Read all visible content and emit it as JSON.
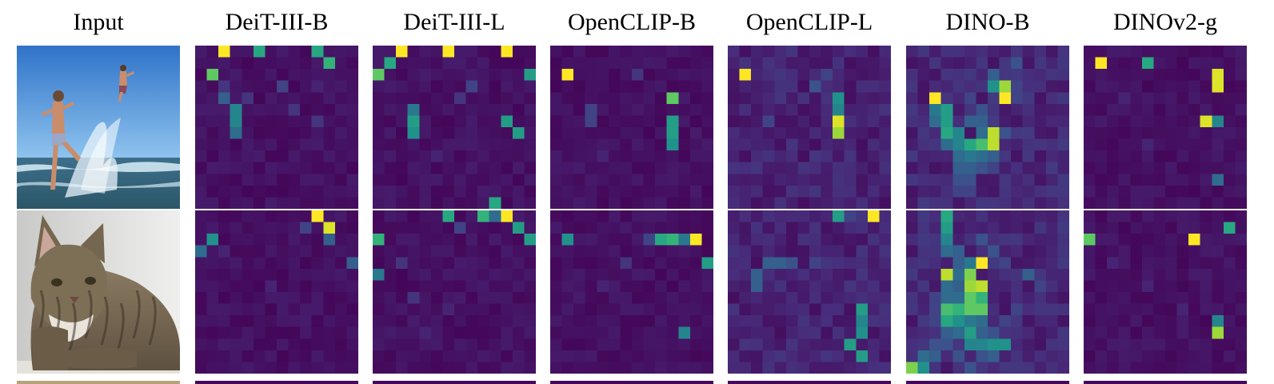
{
  "figure": {
    "column_headers": [
      "Input",
      "DeiT-III-B",
      "DeiT-III-L",
      "OpenCLIP-B",
      "OpenCLIP-L",
      "DINO-B",
      "DINOv2-g"
    ],
    "colormap": "viridis",
    "colormap_stops": [
      "#440154",
      "#472d7b",
      "#3b528b",
      "#2c728e",
      "#21918c",
      "#28ae80",
      "#5ec962",
      "#addc30",
      "#fde725"
    ],
    "grid_size": 14,
    "rows": [
      {
        "input_image": "boy splashing in sea water, another boy jumping, blue sky",
        "maps": {
          "DeiT-III-B": [
            [
              0,
              2,
              1.0
            ],
            [
              0,
              5,
              0.6
            ],
            [
              0,
              10,
              0.6
            ],
            [
              1,
              11,
              0.65
            ],
            [
              2,
              1,
              0.75
            ],
            [
              3,
              2,
              0.15
            ],
            [
              3,
              7,
              0.2
            ],
            [
              4,
              2,
              0.3
            ],
            [
              5,
              3,
              0.45
            ],
            [
              6,
              3,
              0.45
            ],
            [
              7,
              3,
              0.35
            ],
            [
              4,
              4,
              0.15
            ],
            [
              5,
              8,
              0.15
            ],
            [
              6,
              10,
              0.15
            ],
            [
              3,
              10,
              0.1
            ]
          ],
          "DeiT-III-L": [
            [
              0,
              2,
              1.0
            ],
            [
              0,
              6,
              1.0
            ],
            [
              0,
              11,
              1.0
            ],
            [
              1,
              1,
              0.6
            ],
            [
              2,
              0,
              0.75
            ],
            [
              2,
              13,
              0.55
            ],
            [
              3,
              8,
              0.2
            ],
            [
              5,
              3,
              0.4
            ],
            [
              6,
              3,
              0.55
            ],
            [
              7,
              3,
              0.5
            ],
            [
              6,
              11,
              0.55
            ],
            [
              7,
              12,
              0.55
            ],
            [
              13,
              10,
              0.6
            ],
            [
              4,
              7,
              0.15
            ],
            [
              9,
              5,
              0.1
            ]
          ],
          "OpenCLIP-B": [
            [
              2,
              1,
              1.0
            ],
            [
              4,
              10,
              0.75
            ],
            [
              6,
              10,
              0.55
            ],
            [
              7,
              10,
              0.55
            ],
            [
              8,
              10,
              0.5
            ],
            [
              5,
              3,
              0.2
            ],
            [
              6,
              3,
              0.2
            ],
            [
              2,
              7,
              0.15
            ],
            [
              9,
              4,
              0.1
            ]
          ],
          "OpenCLIP-L": [
            [
              2,
              1,
              1.0
            ],
            [
              6,
              9,
              0.95
            ],
            [
              7,
              9,
              0.85
            ],
            [
              4,
              9,
              0.5
            ],
            [
              5,
              9,
              0.45
            ],
            [
              3,
              7,
              0.25
            ],
            [
              2,
              8,
              0.2
            ],
            [
              6,
              3,
              0.2
            ],
            [
              4,
              4,
              0.15
            ],
            [
              8,
              5,
              0.15
            ],
            [
              10,
              2,
              0.15
            ],
            [
              9,
              10,
              0.15
            ],
            [
              11,
              6,
              0.1
            ]
          ],
          "DINO-B": [
            [
              4,
              2,
              1.0
            ],
            [
              4,
              8,
              1.0
            ],
            [
              3,
              8,
              0.85
            ],
            [
              3,
              7,
              0.5
            ],
            [
              5,
              3,
              0.55
            ],
            [
              6,
              3,
              0.55
            ],
            [
              7,
              3,
              0.6
            ],
            [
              8,
              5,
              0.6
            ],
            [
              8,
              6,
              0.7
            ],
            [
              7,
              7,
              0.9
            ],
            [
              8,
              7,
              0.9
            ],
            [
              5,
              2,
              0.4
            ],
            [
              6,
              2,
              0.35
            ],
            [
              7,
              4,
              0.45
            ],
            [
              8,
              4,
              0.45
            ],
            [
              9,
              4,
              0.35
            ],
            [
              9,
              5,
              0.4
            ],
            [
              9,
              6,
              0.35
            ],
            [
              8,
              3,
              0.35
            ],
            [
              10,
              4,
              0.3
            ],
            [
              10,
              5,
              0.3
            ],
            [
              11,
              4,
              0.25
            ],
            [
              11,
              5,
              0.25
            ],
            [
              6,
              5,
              0.3
            ],
            [
              6,
              6,
              0.3
            ],
            [
              5,
              6,
              0.25
            ],
            [
              4,
              5,
              0.2
            ],
            [
              7,
              6,
              0.35
            ],
            [
              9,
              7,
              0.3
            ],
            [
              10,
              6,
              0.25
            ],
            [
              2,
              7,
              0.3
            ],
            [
              1,
              9,
              0.25
            ],
            [
              3,
              9,
              0.2
            ],
            [
              4,
              9,
              0.2
            ],
            [
              2,
              3,
              0.15
            ],
            [
              1,
              2,
              0.15
            ],
            [
              3,
              4,
              0.15
            ],
            [
              7,
              8,
              0.25
            ],
            [
              10,
              7,
              0.2
            ],
            [
              12,
              4,
              0.2
            ],
            [
              12,
              5,
              0.2
            ]
          ],
          "DINOv2-g": [
            [
              1,
              1,
              1.0
            ],
            [
              2,
              11,
              0.95
            ],
            [
              1,
              5,
              0.6
            ],
            [
              3,
              11,
              0.95
            ],
            [
              6,
              10,
              0.95
            ],
            [
              6,
              11,
              0.45
            ],
            [
              11,
              11,
              0.35
            ],
            [
              4,
              3,
              0.1
            ],
            [
              8,
              5,
              0.1
            ]
          ]
        }
      },
      {
        "input_image": "tabby cat lying down, grey background",
        "maps": {
          "DeiT-III-B": [
            [
              0,
              10,
              1.0
            ],
            [
              1,
              11,
              0.95
            ],
            [
              1,
              9,
              0.2
            ],
            [
              2,
              1,
              0.5
            ],
            [
              2,
              11,
              0.3
            ],
            [
              3,
              0,
              0.35
            ],
            [
              4,
              13,
              0.3
            ],
            [
              3,
              2,
              0.1
            ],
            [
              6,
              6,
              0.1
            ]
          ],
          "DeiT-III-L": [
            [
              0,
              6,
              0.6
            ],
            [
              0,
              9,
              0.65
            ],
            [
              0,
              11,
              1.0
            ],
            [
              1,
              12,
              0.55
            ],
            [
              2,
              0,
              0.65
            ],
            [
              2,
              13,
              0.55
            ],
            [
              0,
              10,
              0.35
            ],
            [
              1,
              7,
              0.2
            ],
            [
              5,
              0,
              0.4
            ],
            [
              4,
              2,
              0.15
            ],
            [
              7,
              3,
              0.15
            ],
            [
              8,
              6,
              0.1
            ],
            [
              10,
              4,
              0.1
            ]
          ],
          "OpenCLIP-B": [
            [
              2,
              1,
              0.5
            ],
            [
              2,
              9,
              0.6
            ],
            [
              2,
              10,
              0.65
            ],
            [
              2,
              11,
              0.4
            ],
            [
              2,
              12,
              1.0
            ],
            [
              4,
              13,
              0.55
            ],
            [
              2,
              8,
              0.2
            ],
            [
              10,
              11,
              0.45
            ],
            [
              4,
              6,
              0.15
            ],
            [
              6,
              4,
              0.1
            ]
          ],
          "OpenCLIP-L": [
            [
              0,
              9,
              0.55
            ],
            [
              0,
              12,
              1.0
            ],
            [
              0,
              10,
              0.2
            ],
            [
              0,
              11,
              0.15
            ],
            [
              4,
              3,
              0.3
            ],
            [
              4,
              4,
              0.3
            ],
            [
              4,
              5,
              0.25
            ],
            [
              5,
              2,
              0.3
            ],
            [
              6,
              2,
              0.3
            ],
            [
              4,
              7,
              0.2
            ],
            [
              8,
              11,
              0.55
            ],
            [
              9,
              11,
              0.45
            ],
            [
              10,
              11,
              0.5
            ],
            [
              11,
              10,
              0.55
            ],
            [
              12,
              11,
              0.55
            ],
            [
              5,
              11,
              0.15
            ],
            [
              6,
              10,
              0.15
            ],
            [
              3,
              9,
              0.1
            ],
            [
              8,
              4,
              0.1
            ],
            [
              10,
              5,
              0.1
            ]
          ],
          "DINO-B": [
            [
              0,
              3,
              0.6
            ],
            [
              1,
              3,
              0.55
            ],
            [
              2,
              3,
              0.45
            ],
            [
              3,
              3,
              0.35
            ],
            [
              4,
              5,
              0.4
            ],
            [
              4,
              6,
              1.0
            ],
            [
              5,
              3,
              0.9
            ],
            [
              5,
              5,
              0.8
            ],
            [
              6,
              5,
              0.85
            ],
            [
              7,
              5,
              0.75
            ],
            [
              6,
              6,
              0.9
            ],
            [
              8,
              3,
              0.7
            ],
            [
              8,
              4,
              0.65
            ],
            [
              8,
              5,
              0.75
            ],
            [
              8,
              6,
              0.75
            ],
            [
              7,
              6,
              0.65
            ],
            [
              9,
              3,
              0.6
            ],
            [
              9,
              4,
              0.5
            ],
            [
              10,
              5,
              0.55
            ],
            [
              11,
              5,
              0.45
            ],
            [
              11,
              6,
              0.45
            ],
            [
              11,
              7,
              0.5
            ],
            [
              11,
              8,
              0.5
            ],
            [
              12,
              1,
              0.35
            ],
            [
              12,
              2,
              0.3
            ],
            [
              13,
              0,
              0.8
            ],
            [
              13,
              1,
              0.5
            ],
            [
              4,
              4,
              0.3
            ],
            [
              5,
              4,
              0.35
            ],
            [
              6,
              3,
              0.35
            ],
            [
              6,
              4,
              0.3
            ],
            [
              7,
              3,
              0.35
            ],
            [
              7,
              4,
              0.35
            ],
            [
              9,
              5,
              0.4
            ],
            [
              9,
              6,
              0.35
            ],
            [
              10,
              3,
              0.3
            ],
            [
              10,
              4,
              0.35
            ],
            [
              10,
              6,
              0.3
            ],
            [
              3,
              4,
              0.3
            ],
            [
              2,
              6,
              0.25
            ],
            [
              3,
              7,
              0.25
            ],
            [
              4,
              8,
              0.2
            ],
            [
              5,
              10,
              0.3
            ],
            [
              6,
              11,
              0.2
            ],
            [
              8,
              9,
              0.2
            ],
            [
              9,
              8,
              0.2
            ],
            [
              10,
              7,
              0.25
            ],
            [
              12,
              6,
              0.25
            ],
            [
              12,
              7,
              0.3
            ],
            [
              13,
              5,
              0.25
            ],
            [
              11,
              2,
              0.25
            ],
            [
              11,
              3,
              0.25
            ],
            [
              12,
              4,
              0.25
            ],
            [
              9,
              2,
              0.2
            ],
            [
              8,
              2,
              0.2
            ],
            [
              7,
              2,
              0.2
            ]
          ],
          "DINOv2-g": [
            [
              2,
              0,
              0.75
            ],
            [
              2,
              9,
              1.0
            ],
            [
              1,
              12,
              0.6
            ],
            [
              9,
              11,
              0.45
            ],
            [
              10,
              11,
              0.85
            ],
            [
              4,
              2,
              0.1
            ],
            [
              6,
              5,
              0.1
            ],
            [
              8,
              8,
              0.1
            ]
          ]
        }
      }
    ]
  }
}
